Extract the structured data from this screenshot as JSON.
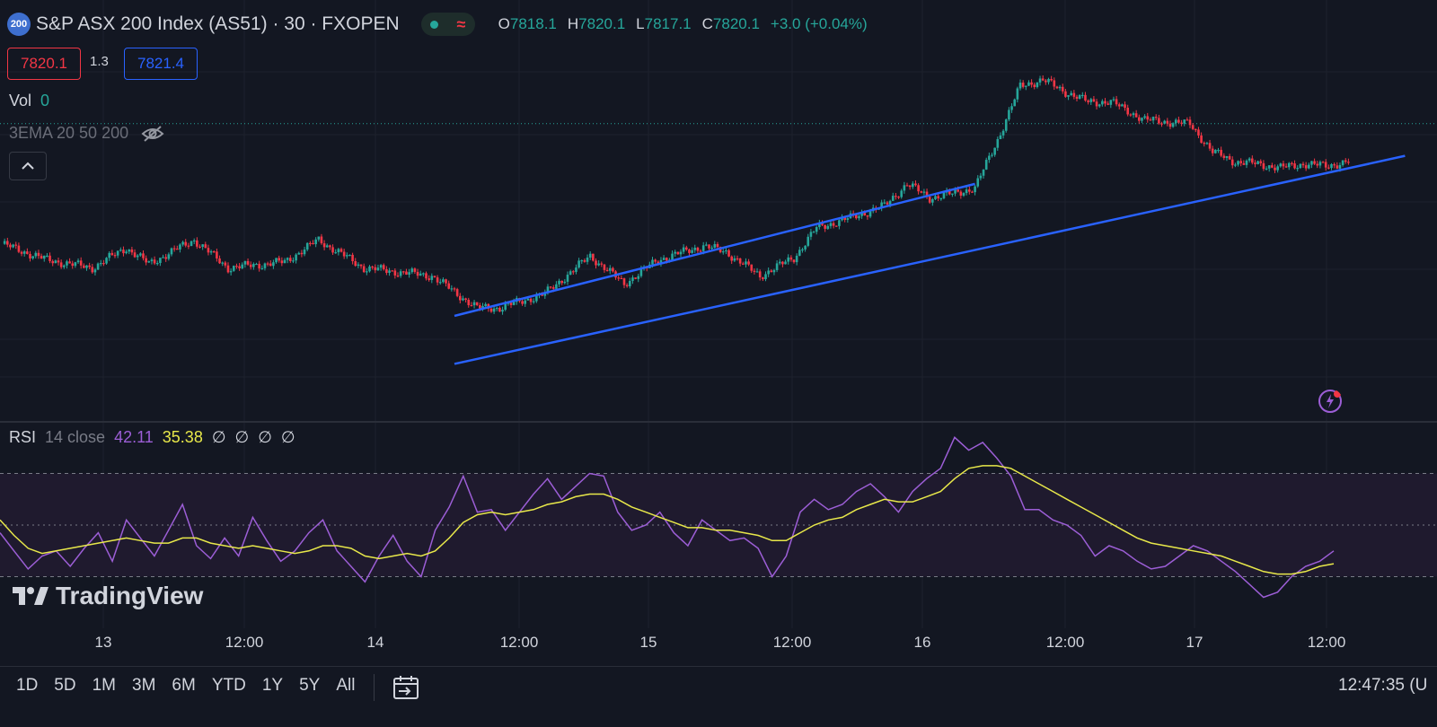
{
  "header": {
    "badge": "200",
    "title": "S&P ASX 200 Index (AS51) · 30 · FXOPEN",
    "status_wave": "≈",
    "ohlc": [
      {
        "k": "O",
        "v": "7818.1"
      },
      {
        "k": "H",
        "v": "7820.1"
      },
      {
        "k": "L",
        "v": "7817.1"
      },
      {
        "k": "C",
        "v": "7820.1"
      },
      {
        "k": "",
        "v": "+3.0 (+0.04%)"
      }
    ]
  },
  "trade": {
    "sell": "7820.1",
    "spread": "1.3",
    "buy": "7821.4"
  },
  "volume": {
    "label": "Vol",
    "value": "0"
  },
  "indicator": {
    "label": "3EMA 20 50 200"
  },
  "rsi_legend": {
    "name": "RSI",
    "params": "14 close",
    "rsi": "42.11",
    "ma": "35.38",
    "extra": [
      "∅",
      "∅",
      "∅",
      "∅"
    ]
  },
  "logo": {
    "text": "TradingView"
  },
  "time_axis": [
    "13",
    "12:00",
    "14",
    "12:00",
    "15",
    "12:00",
    "16",
    "12:00",
    "17",
    "12:00"
  ],
  "range_buttons": [
    "1D",
    "5D",
    "1M",
    "3M",
    "6M",
    "YTD",
    "1Y",
    "5Y",
    "All"
  ],
  "clock": "12:47:35 (U",
  "colors": {
    "up": "#26a69a",
    "down": "#f23645",
    "trendline": "#2962ff",
    "rsi": "#9c5ed6",
    "rsi_ma": "#e8e84a",
    "background": "#131722"
  },
  "chart_data": [
    {
      "type": "candlestick",
      "title": "S&P ASX 200 Index (AS51) · 30 · FXOPEN",
      "timeframe": "30m",
      "ylim": [
        7680,
        7855
      ],
      "last_close": 7820.1,
      "price_path": [
        [
          0,
          7760
        ],
        [
          4,
          7752
        ],
        [
          8,
          7748
        ],
        [
          11,
          7758
        ],
        [
          13,
          7750
        ],
        [
          17,
          7762
        ],
        [
          20,
          7748
        ],
        [
          25,
          7751
        ],
        [
          28,
          7762
        ],
        [
          32,
          7748
        ],
        [
          38,
          7744
        ],
        [
          42,
          7728
        ],
        [
          44,
          7728
        ],
        [
          48,
          7735
        ],
        [
          52,
          7754
        ],
        [
          55,
          7740
        ],
        [
          58,
          7752
        ],
        [
          62,
          7759
        ],
        [
          64,
          7756
        ],
        [
          67,
          7744
        ],
        [
          70,
          7753
        ],
        [
          72,
          7768
        ],
        [
          75,
          7773
        ],
        [
          78,
          7779
        ],
        [
          80,
          7790
        ],
        [
          82,
          7783
        ],
        [
          84,
          7785
        ],
        [
          86,
          7788
        ],
        [
          88,
          7812
        ],
        [
          90,
          7839
        ],
        [
          92,
          7842
        ],
        [
          94,
          7836
        ],
        [
          96,
          7831
        ],
        [
          98,
          7831
        ],
        [
          101,
          7822
        ],
        [
          103,
          7821
        ],
        [
          105,
          7820
        ],
        [
          107,
          7806
        ],
        [
          109,
          7801
        ],
        [
          111,
          7800
        ],
        [
          113,
          7798
        ],
        [
          115,
          7800
        ],
        [
          117,
          7799
        ],
        [
          119,
          7801
        ]
      ],
      "trendlines": [
        {
          "from": [
            40,
            7724
          ],
          "to": [
            86,
            7790
          ]
        },
        {
          "from": [
            40,
            7700
          ],
          "to": [
            124,
            7804
          ]
        }
      ]
    },
    {
      "type": "line",
      "title": "RSI 14 close",
      "ylim": [
        10,
        90
      ],
      "levels": [
        70,
        50,
        30
      ],
      "series": [
        {
          "name": "RSI",
          "last": 42.11,
          "values": [
            47,
            40,
            33,
            38,
            40,
            34,
            41,
            47,
            36,
            52,
            45,
            38,
            48,
            58,
            42,
            37,
            45,
            38,
            53,
            44,
            36,
            40,
            47,
            52,
            40,
            34,
            28,
            38,
            46,
            36,
            30,
            48,
            57,
            69,
            55,
            56,
            48,
            55,
            62,
            68,
            60,
            65,
            70,
            69,
            55,
            48,
            50,
            55,
            47,
            42,
            52,
            48,
            44,
            45,
            41,
            30,
            38,
            55,
            60,
            56,
            58,
            63,
            66,
            61,
            55,
            63,
            68,
            72,
            84,
            79,
            82,
            76,
            69,
            56,
            56,
            52,
            50,
            46,
            38,
            42,
            40,
            36,
            33,
            34,
            38,
            42,
            40,
            36,
            32,
            27,
            22,
            24,
            30,
            34,
            36,
            40
          ]
        },
        {
          "name": "RSI-based MA",
          "last": 35.38,
          "values": [
            52,
            46,
            41,
            39,
            40,
            41,
            42,
            43,
            44,
            45,
            44,
            43,
            43,
            45,
            45,
            43,
            42,
            41,
            42,
            41,
            40,
            39,
            40,
            42,
            42,
            41,
            38,
            37,
            38,
            39,
            38,
            40,
            45,
            51,
            54,
            55,
            54,
            55,
            56,
            58,
            59,
            61,
            62,
            62,
            60,
            57,
            55,
            53,
            51,
            49,
            49,
            48,
            48,
            47,
            46,
            44,
            44,
            47,
            50,
            52,
            53,
            56,
            58,
            60,
            59,
            59,
            61,
            63,
            68,
            72,
            73,
            73,
            72,
            69,
            66,
            63,
            60,
            57,
            54,
            51,
            48,
            45,
            43,
            42,
            41,
            40,
            39,
            38,
            36,
            34,
            32,
            31,
            31,
            32,
            34,
            35
          ]
        }
      ]
    }
  ]
}
